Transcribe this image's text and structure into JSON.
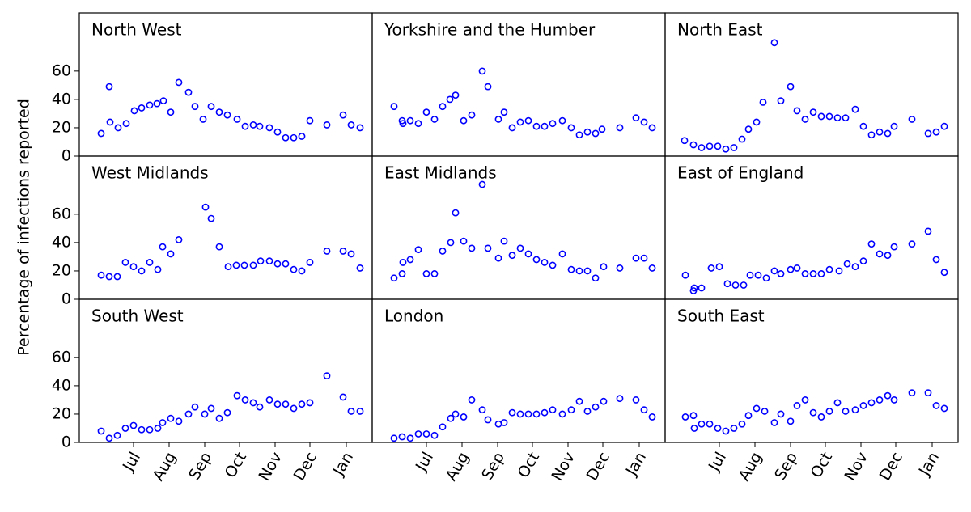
{
  "chart_data": {
    "type": "scatter",
    "ylabel": "Percentage of infections reported",
    "color": "#0000ff",
    "xlim": [
      -2.7,
      33.5
    ],
    "ylim": [
      0,
      101
    ],
    "yticks": [
      0,
      20,
      40,
      60
    ],
    "xticks": [
      {
        "value": 4,
        "label": "Jul"
      },
      {
        "value": 8.4,
        "label": "Aug"
      },
      {
        "value": 12.8,
        "label": "Sep"
      },
      {
        "value": 17.1,
        "label": "Oct"
      },
      {
        "value": 21.5,
        "label": "Nov"
      },
      {
        "value": 25.8,
        "label": "Dec"
      },
      {
        "value": 30.3,
        "label": "Jan"
      }
    ],
    "panels": [
      {
        "title": "North West",
        "x": [
          0,
          1,
          1.1,
          2.1,
          3.1,
          4.1,
          5,
          6,
          6.9,
          7.7,
          8.6,
          9.6,
          10.8,
          11.6,
          12.6,
          13.6,
          14.6,
          15.6,
          16.8,
          17.8,
          18.8,
          19.6,
          20.8,
          21.8,
          22.8,
          23.8,
          24.8,
          25.8,
          27.9,
          29.9,
          30.9,
          32
        ],
        "values": [
          16,
          49,
          24,
          20,
          23,
          32,
          34,
          36,
          37,
          39,
          31,
          52,
          45,
          35,
          26,
          35,
          31,
          29,
          26,
          21,
          22,
          21,
          20,
          17,
          13,
          13,
          14,
          25,
          22,
          29,
          22,
          20
        ]
      },
      {
        "title": "Yorkshire and the Humber",
        "x": [
          0,
          1,
          1.1,
          2,
          3,
          4,
          5,
          6,
          6.9,
          7.6,
          8.6,
          9.6,
          10.9,
          11.6,
          12.9,
          13.6,
          14.6,
          15.6,
          16.6,
          17.6,
          18.6,
          19.6,
          20.8,
          21.9,
          22.9,
          23.9,
          24.9,
          25.7,
          27.9,
          29.9,
          30.9,
          31.9
        ],
        "values": [
          35,
          25,
          23,
          25,
          23,
          31,
          26,
          35,
          40,
          43,
          25,
          29,
          60,
          49,
          26,
          31,
          20,
          24,
          25,
          21,
          21,
          23,
          25,
          20,
          15,
          17,
          16,
          19,
          20,
          27,
          24,
          20
        ]
      },
      {
        "title": "North East",
        "x": [
          -0.3,
          0.8,
          1.8,
          2.8,
          3.8,
          4.8,
          5.8,
          6.8,
          7.6,
          8.6,
          9.4,
          10.8,
          11.6,
          12.8,
          13.6,
          14.6,
          15.6,
          16.6,
          17.6,
          18.6,
          19.6,
          20.8,
          21.8,
          22.8,
          23.8,
          24.8,
          25.6,
          27.8,
          29.8,
          30.8,
          31.8
        ],
        "values": [
          11,
          8,
          6,
          7,
          7,
          5,
          6,
          12,
          19,
          24,
          38,
          80,
          39,
          49,
          32,
          26,
          31,
          28,
          28,
          27,
          27,
          33,
          21,
          15,
          17,
          16,
          21,
          26,
          16,
          17,
          21
        ]
      },
      {
        "title": "West Midlands",
        "x": [
          0,
          1,
          2,
          3,
          4,
          5,
          6,
          7,
          7.6,
          8.6,
          9.6,
          12.9,
          13.6,
          14.6,
          15.7,
          16.7,
          17.7,
          18.8,
          19.7,
          20.8,
          21.8,
          22.8,
          23.8,
          24.8,
          25.8,
          27.9,
          29.9,
          30.9,
          32
        ],
        "values": [
          17,
          16,
          16,
          26,
          23,
          20,
          26,
          21,
          37,
          32,
          42,
          65,
          57,
          37,
          23,
          24,
          24,
          24,
          27,
          27,
          25,
          25,
          21,
          20,
          26,
          34,
          34,
          32,
          22
        ]
      },
      {
        "title": "East Midlands",
        "x": [
          0,
          1,
          1.1,
          2,
          3,
          4,
          5,
          6,
          7,
          7.6,
          8.6,
          9.6,
          10.9,
          11.6,
          12.9,
          13.6,
          14.6,
          15.6,
          16.6,
          17.6,
          18.6,
          19.6,
          20.8,
          21.9,
          22.9,
          23.9,
          24.9,
          25.9,
          27.9,
          29.9,
          30.9,
          31.9
        ],
        "values": [
          15,
          18,
          26,
          28,
          35,
          18,
          18,
          34,
          40,
          61,
          41,
          36,
          81,
          36,
          29,
          41,
          31,
          36,
          32,
          28,
          26,
          24,
          32,
          21,
          20,
          20,
          15,
          23,
          22,
          29,
          29,
          22
        ]
      },
      {
        "title": "East of England",
        "x": [
          -0.2,
          0.8,
          0.9,
          1.8,
          3,
          4,
          5,
          6,
          7,
          7.8,
          8.8,
          9.8,
          10.8,
          11.6,
          12.8,
          13.6,
          14.6,
          15.6,
          16.6,
          17.6,
          18.8,
          19.8,
          20.8,
          21.8,
          22.8,
          23.8,
          24.8,
          25.6,
          27.8,
          29.8,
          30.8,
          31.8
        ],
        "values": [
          17,
          6,
          8,
          8,
          22,
          23,
          11,
          10,
          10,
          17,
          17,
          15,
          20,
          18,
          21,
          22,
          18,
          18,
          18,
          21,
          20,
          25,
          23,
          27,
          39,
          32,
          31,
          37,
          39,
          48,
          28,
          19
        ]
      },
      {
        "title": "South West",
        "x": [
          0,
          1,
          2,
          3,
          4,
          5,
          6,
          7,
          7.6,
          8.6,
          9.6,
          10.8,
          11.6,
          12.8,
          13.6,
          14.6,
          15.6,
          16.8,
          17.8,
          18.8,
          19.6,
          20.8,
          21.8,
          22.8,
          23.8,
          24.8,
          25.8,
          27.9,
          29.9,
          30.9,
          32
        ],
        "values": [
          8,
          3,
          5,
          10,
          12,
          9,
          9,
          10,
          14,
          17,
          15,
          20,
          25,
          20,
          24,
          17,
          21,
          33,
          30,
          28,
          25,
          30,
          27,
          27,
          24,
          27,
          28,
          47,
          32,
          22,
          22
        ]
      },
      {
        "title": "London",
        "x": [
          0,
          1,
          2,
          3,
          4,
          5,
          6,
          7,
          7.6,
          8.6,
          9.6,
          10.9,
          11.6,
          12.9,
          13.6,
          14.6,
          15.6,
          16.6,
          17.6,
          18.6,
          19.6,
          20.8,
          21.9,
          22.9,
          23.9,
          24.9,
          25.9,
          27.9,
          29.9,
          30.9,
          31.9
        ],
        "values": [
          3,
          4,
          3,
          6,
          6,
          5,
          11,
          17,
          20,
          18,
          30,
          23,
          16,
          13,
          14,
          21,
          20,
          20,
          20,
          21,
          23,
          20,
          23,
          29,
          22,
          25,
          29,
          31,
          30,
          23,
          18
        ]
      },
      {
        "title": "South East",
        "x": [
          -0.2,
          0.8,
          0.9,
          1.8,
          2.8,
          3.8,
          4.8,
          5.8,
          6.8,
          7.6,
          8.6,
          9.6,
          10.8,
          11.6,
          12.8,
          13.6,
          14.6,
          15.6,
          16.6,
          17.6,
          18.6,
          19.6,
          20.8,
          21.8,
          22.8,
          23.8,
          24.8,
          25.6,
          27.8,
          29.8,
          30.8,
          31.8
        ],
        "values": [
          18,
          19,
          10,
          13,
          13,
          10,
          8,
          10,
          13,
          19,
          24,
          22,
          14,
          20,
          15,
          26,
          30,
          21,
          18,
          22,
          28,
          22,
          23,
          26,
          28,
          30,
          33,
          30,
          35,
          35,
          26,
          24
        ]
      }
    ]
  }
}
